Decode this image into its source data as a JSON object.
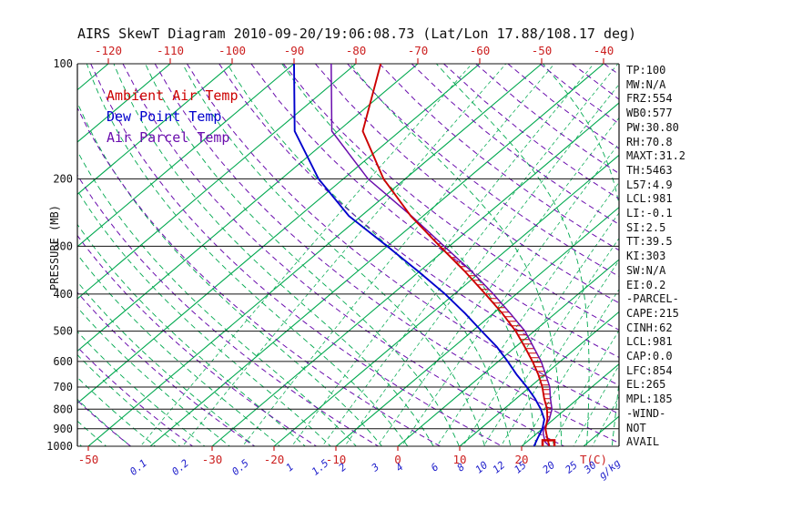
{
  "title": "AIRS SkewT Diagram 2010-09-20/19:06:08.73 (Lat/Lon 17.88/108.17 deg)",
  "colors": {
    "ambient": "#cc0000",
    "dewpoint": "#0000cc",
    "parcel": "#6a0dad",
    "isotherm_green": "#00a84f",
    "adiabat_purple": "#6a0dad",
    "axis_black": "#101010",
    "tick_red": "#cc2020",
    "mixing_blue": "#2222cc"
  },
  "legend": [
    {
      "label": "Ambient Air Temp",
      "color": "#cc0000"
    },
    {
      "label": "Dew Point Temp",
      "color": "#0000cc"
    },
    {
      "label": "Air Parcel Temp",
      "color": "#6a0dad"
    }
  ],
  "axes": {
    "pressure_label": "PRESSURE (MB)",
    "pressure_ticks": [
      100,
      200,
      300,
      400,
      500,
      600,
      700,
      800,
      900,
      1000
    ],
    "top_temp_ticks": [
      -120,
      -110,
      -100,
      -90,
      -80,
      -70,
      -60,
      -50,
      -40
    ],
    "bottom_temp_ticks": [
      -50,
      -30,
      -20,
      -10,
      0,
      10,
      20
    ],
    "temp_unit_label": "T(C)",
    "mixing_ratio_ticks": [
      0.1,
      0.2,
      0.5,
      1,
      1.5,
      2,
      3,
      4,
      6,
      8,
      10,
      12,
      15,
      20,
      25,
      30
    ],
    "mixing_unit_label": "g/kg"
  },
  "stats": [
    "TP:100",
    "MW:N/A",
    "FRZ:554",
    "WB0:577",
    "PW:30.80",
    "RH:70.8",
    "MAXT:31.2",
    "TH:5463",
    "L57:4.9",
    "LCL:981",
    "LI:-0.1",
    "SI:2.5",
    "TT:39.5",
    "KI:303",
    "SW:N/A",
    "EI:0.2",
    "-PARCEL-",
    "CAPE:215",
    "CINH:62",
    "LCL:981",
    "CAP:0.0",
    "LFC:854",
    "EL:265",
    "MPL:185",
    "-WIND-",
    "NOT",
    "AVAIL"
  ],
  "chart_data": {
    "type": "line",
    "subtype": "skewt_log_p",
    "title": "AIRS SkewT Diagram 2010-09-20/19:06:08.73 (Lat/Lon 17.88/108.17 deg)",
    "xlabel": "T(C)",
    "ylabel": "PRESSURE (MB)",
    "x_range_at_surface_C": [
      -50,
      35
    ],
    "pressure_range_mb": [
      100,
      1000
    ],
    "grid": "skewed isotherms every 10C (green solid), dry adiabats (purple dashed), moist adiabats and mixing-ratio lines (green dashed)",
    "legend_position": "upper-left inside plot",
    "pressure_levels_mb": [
      1000,
      975,
      950,
      925,
      900,
      850,
      800,
      750,
      700,
      650,
      600,
      550,
      500,
      450,
      400,
      350,
      300,
      250,
      200,
      150,
      100
    ],
    "series": [
      {
        "name": "Ambient Air Temp",
        "color": "#cc0000",
        "values_C": [
          24.5,
          23.5,
          22.5,
          21.5,
          20.5,
          19.0,
          17.0,
          14.5,
          12.0,
          9.0,
          5.5,
          1.5,
          -3.0,
          -8.5,
          -15.0,
          -22.5,
          -31.5,
          -42.0,
          -53.5,
          -66.0,
          -76.0
        ]
      },
      {
        "name": "Dew Point Temp",
        "color": "#0000cc",
        "values_C": [
          22.0,
          21.5,
          21.0,
          20.5,
          20.0,
          18.5,
          16.0,
          13.0,
          9.5,
          5.5,
          1.5,
          -3.0,
          -8.5,
          -14.5,
          -21.5,
          -30.0,
          -40.0,
          -52.0,
          -64.0,
          -77.0,
          -90.0
        ]
      },
      {
        "name": "Air Parcel Temp",
        "color": "#6a0dad",
        "values_C": [
          24.5,
          23.0,
          22.0,
          21.0,
          20.2,
          19.3,
          17.8,
          15.5,
          13.2,
          10.2,
          6.9,
          2.9,
          -1.5,
          -7.2,
          -13.7,
          -21.4,
          -30.8,
          -41.9,
          -56.0,
          -71.0,
          -84.0
        ]
      }
    ],
    "cape_region": {
      "lfc_mb": 854,
      "el_mb": 265,
      "hatch_color": "#cc0000"
    },
    "surface_marker": {
      "pressure_mb": 1005,
      "temp_C": 24.5,
      "color": "#cc0000"
    },
    "background_families": {
      "isotherms_C": {
        "from": -140,
        "to": 40,
        "step": 10
      },
      "dry_adiabats_thetaK": {
        "from": 230,
        "to": 470,
        "step": 10
      },
      "moist_adiabats_startC": {
        "from": -48,
        "to": 40,
        "step": 4
      },
      "mixing_ratio_lines_gkg": [
        0.1,
        0.2,
        0.5,
        1,
        1.5,
        2,
        3,
        4,
        6,
        8,
        10,
        12,
        15,
        20,
        25,
        30,
        40,
        50
      ]
    }
  }
}
